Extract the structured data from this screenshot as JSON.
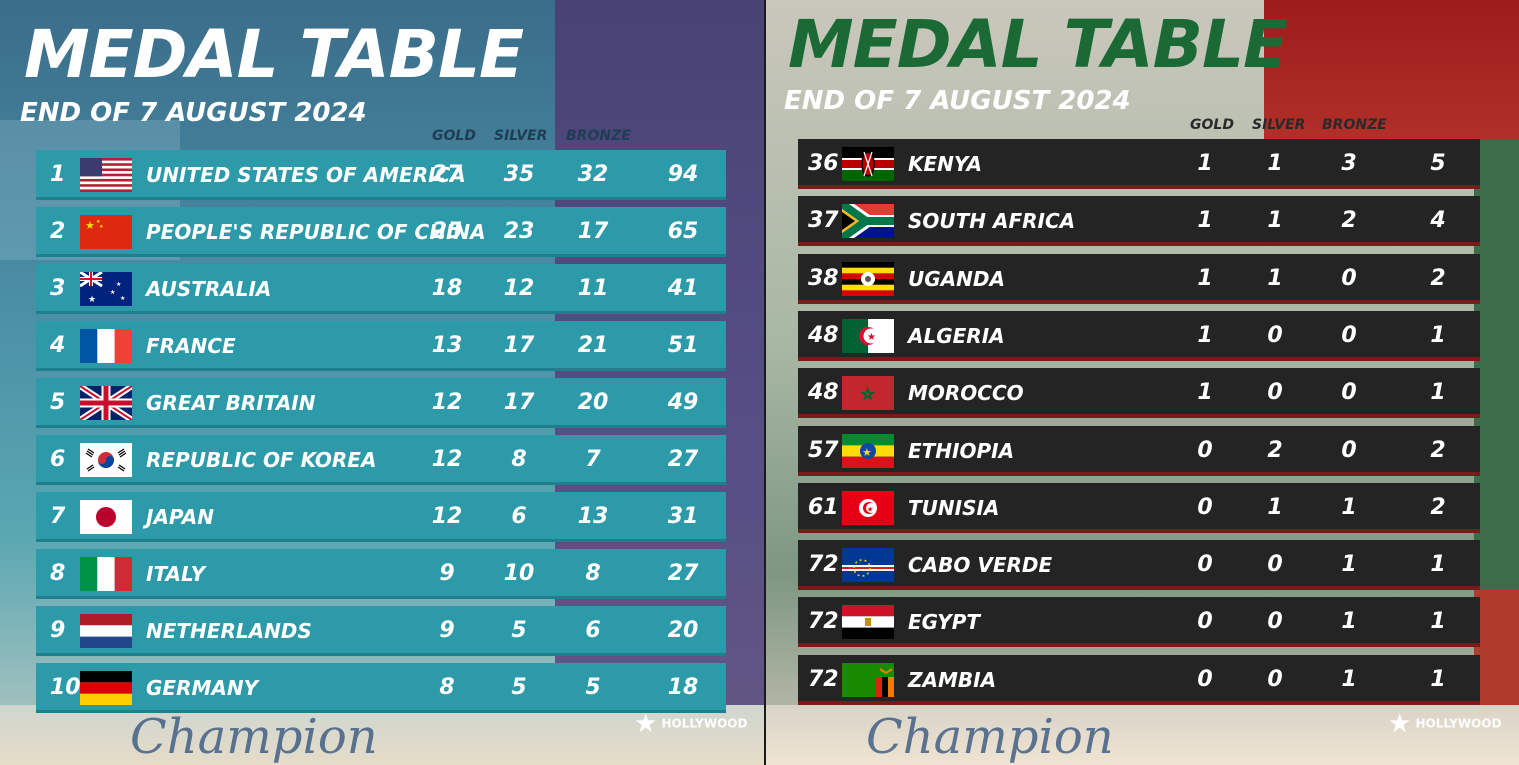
{
  "left": {
    "title": "MEDAL TABLE",
    "subtitle": "END OF 7 AUGUST 2024",
    "headers": {
      "gold": "GOLD",
      "silver": "SILVER",
      "bronze": "BRONZE"
    },
    "rows": [
      {
        "rank": "1",
        "country": "UNITED STATES OF AMERICA",
        "flag": "usa-flag",
        "gold": "27",
        "silver": "35",
        "bronze": "32",
        "total": "94"
      },
      {
        "rank": "2",
        "country": "PEOPLE'S REPUBLIC OF CHINA",
        "flag": "china-flag",
        "gold": "25",
        "silver": "23",
        "bronze": "17",
        "total": "65"
      },
      {
        "rank": "3",
        "country": "AUSTRALIA",
        "flag": "australia-flag",
        "gold": "18",
        "silver": "12",
        "bronze": "11",
        "total": "41"
      },
      {
        "rank": "4",
        "country": "FRANCE",
        "flag": "france-flag",
        "gold": "13",
        "silver": "17",
        "bronze": "21",
        "total": "51"
      },
      {
        "rank": "5",
        "country": "GREAT BRITAIN",
        "flag": "great-britain-flag",
        "gold": "12",
        "silver": "17",
        "bronze": "20",
        "total": "49"
      },
      {
        "rank": "6",
        "country": "REPUBLIC OF KOREA",
        "flag": "korea-flag",
        "gold": "12",
        "silver": "8",
        "bronze": "7",
        "total": "27"
      },
      {
        "rank": "7",
        "country": "JAPAN",
        "flag": "japan-flag",
        "gold": "12",
        "silver": "6",
        "bronze": "13",
        "total": "31"
      },
      {
        "rank": "8",
        "country": "ITALY",
        "flag": "italy-flag",
        "gold": "9",
        "silver": "10",
        "bronze": "8",
        "total": "27"
      },
      {
        "rank": "9",
        "country": "NETHERLANDS",
        "flag": "netherlands-flag",
        "gold": "9",
        "silver": "5",
        "bronze": "6",
        "total": "20"
      },
      {
        "rank": "10",
        "country": "GERMANY",
        "flag": "germany-flag",
        "gold": "8",
        "silver": "5",
        "bronze": "5",
        "total": "18"
      }
    ],
    "brand": "HOLLYWOOD",
    "signature": "Champion"
  },
  "right": {
    "title": "MEDAL TABLE",
    "subtitle": "END OF 7 AUGUST 2024",
    "headers": {
      "gold": "GOLD",
      "silver": "SILVER",
      "bronze": "BRONZE"
    },
    "rows": [
      {
        "rank": "36",
        "country": "KENYA",
        "flag": "kenya-flag",
        "gold": "1",
        "silver": "1",
        "bronze": "3",
        "total": "5"
      },
      {
        "rank": "37",
        "country": "SOUTH AFRICA",
        "flag": "south-africa-flag",
        "gold": "1",
        "silver": "1",
        "bronze": "2",
        "total": "4"
      },
      {
        "rank": "38",
        "country": "UGANDA",
        "flag": "uganda-flag",
        "gold": "1",
        "silver": "1",
        "bronze": "0",
        "total": "2"
      },
      {
        "rank": "48",
        "country": "ALGERIA",
        "flag": "algeria-flag",
        "gold": "1",
        "silver": "0",
        "bronze": "0",
        "total": "1"
      },
      {
        "rank": "48",
        "country": "MOROCCO",
        "flag": "morocco-flag",
        "gold": "1",
        "silver": "0",
        "bronze": "0",
        "total": "1"
      },
      {
        "rank": "57",
        "country": "ETHIOPIA",
        "flag": "ethiopia-flag",
        "gold": "0",
        "silver": "2",
        "bronze": "0",
        "total": "2"
      },
      {
        "rank": "61",
        "country": "TUNISIA",
        "flag": "tunisia-flag",
        "gold": "0",
        "silver": "1",
        "bronze": "1",
        "total": "2"
      },
      {
        "rank": "72",
        "country": "CABO VERDE",
        "flag": "cabo-verde-flag",
        "gold": "0",
        "silver": "0",
        "bronze": "1",
        "total": "1"
      },
      {
        "rank": "72",
        "country": "EGYPT",
        "flag": "egypt-flag",
        "gold": "0",
        "silver": "0",
        "bronze": "1",
        "total": "1"
      },
      {
        "rank": "72",
        "country": "ZAMBIA",
        "flag": "zambia-flag",
        "gold": "0",
        "silver": "0",
        "bronze": "1",
        "total": "1"
      }
    ],
    "brand": "HOLLYWOOD",
    "signature": "Champion"
  },
  "colors": {
    "left_row_bg": "#2c9aa8",
    "right_row_bg": "#242424",
    "right_title": "#1b6a35"
  }
}
